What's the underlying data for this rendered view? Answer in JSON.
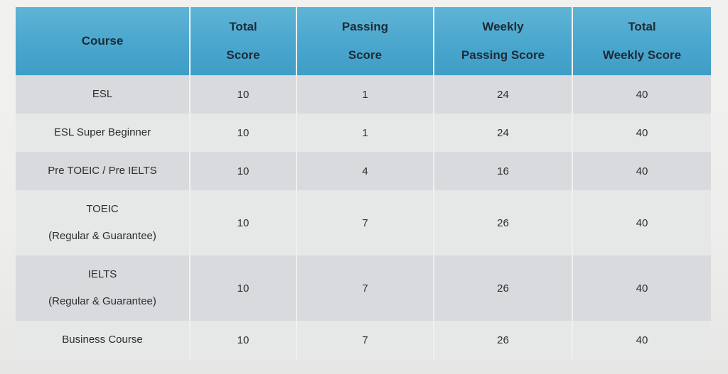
{
  "table": {
    "headers": {
      "course": [
        "Course"
      ],
      "total_score": [
        "Total",
        "Score"
      ],
      "passing_score": [
        "Passing",
        "Score"
      ],
      "weekly_passing_score": [
        "Weekly",
        "Passing Score"
      ],
      "total_weekly_score": [
        "Total",
        "Weekly Score"
      ]
    },
    "rows": [
      {
        "course": [
          "ESL"
        ],
        "total_score": "10",
        "passing_score": "1",
        "weekly_passing_score": "24",
        "total_weekly_score": "40"
      },
      {
        "course": [
          "ESL Super Beginner"
        ],
        "total_score": "10",
        "passing_score": "1",
        "weekly_passing_score": "24",
        "total_weekly_score": "40"
      },
      {
        "course": [
          "Pre TOEIC / Pre IELTS"
        ],
        "total_score": "10",
        "passing_score": "4",
        "weekly_passing_score": "16",
        "total_weekly_score": "40"
      },
      {
        "course": [
          "TOEIC",
          "(Regular & Guarantee)"
        ],
        "total_score": "10",
        "passing_score": "7",
        "weekly_passing_score": "26",
        "total_weekly_score": "40"
      },
      {
        "course": [
          "IELTS",
          "(Regular & Guarantee)"
        ],
        "total_score": "10",
        "passing_score": "7",
        "weekly_passing_score": "26",
        "total_weekly_score": "40"
      },
      {
        "course": [
          "Business Course"
        ],
        "total_score": "10",
        "passing_score": "7",
        "weekly_passing_score": "26",
        "total_weekly_score": "40"
      }
    ]
  }
}
